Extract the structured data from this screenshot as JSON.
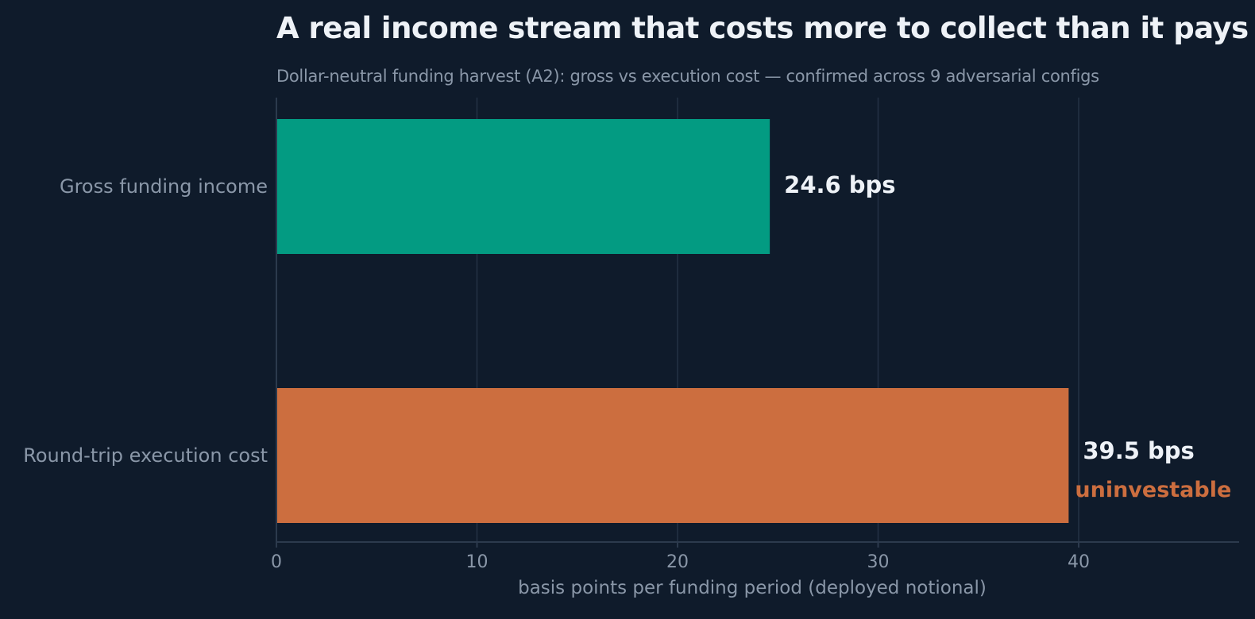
{
  "chart_data": {
    "type": "bar",
    "orientation": "horizontal",
    "title": "A real income stream that costs more to collect than it pays",
    "subtitle": "Dollar-neutral funding harvest (A2): gross vs execution cost — confirmed across 9 adversarial configs",
    "categories": [
      "Gross funding income",
      "Round-trip execution cost"
    ],
    "values": [
      24.6,
      39.5
    ],
    "value_labels": [
      "24.6 bps",
      "39.5 bps"
    ],
    "annotations": [
      "",
      "uninvestable"
    ],
    "colors": [
      "#039b82",
      "#cc6e3f"
    ],
    "xlabel": "basis points per funding period (deployed notional)",
    "ylabel": "",
    "xlim": [
      0,
      48
    ],
    "xticks": [
      0,
      10,
      20,
      30,
      40
    ],
    "grid": true,
    "annotation_color": "#cc6e3f"
  }
}
